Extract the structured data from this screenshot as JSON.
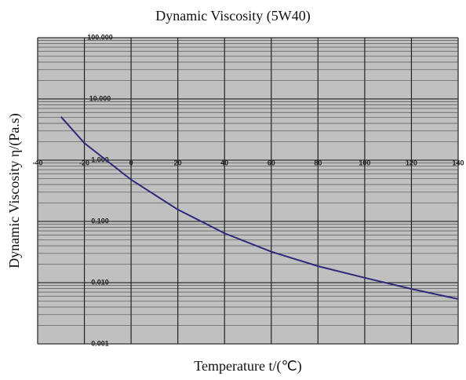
{
  "chart_data": {
    "type": "line",
    "title": "Dynamic Viscosity (5W40)",
    "x_label": "Temperature t/(℃)",
    "y_label": "Dynamic Viscosity η/(Pa.s)",
    "x": [
      -30,
      -20,
      0,
      20,
      40,
      60,
      80,
      100,
      120,
      140
    ],
    "series": [
      {
        "name": "5W40",
        "color": "#2e2a7a",
        "values": [
          5.1,
          1.9,
          0.48,
          0.156,
          0.064,
          0.032,
          0.0186,
          0.012,
          0.0079,
          0.0054
        ]
      }
    ],
    "xlim": [
      -40,
      140
    ],
    "xticks": [
      -40,
      -20,
      0,
      20,
      40,
      60,
      80,
      100,
      120,
      140
    ],
    "ylim": [
      0.001,
      100
    ],
    "yticks": [
      {
        "value": 100,
        "label": "100.000"
      },
      {
        "value": 10,
        "label": "10.000"
      },
      {
        "value": 1,
        "label": "1.000"
      },
      {
        "value": 0.1,
        "label": "0.100"
      },
      {
        "value": 0.01,
        "label": "0.010"
      },
      {
        "value": 0.001,
        "label": "0.001"
      }
    ],
    "y_log": true,
    "grid": true,
    "minor_grid": true
  }
}
